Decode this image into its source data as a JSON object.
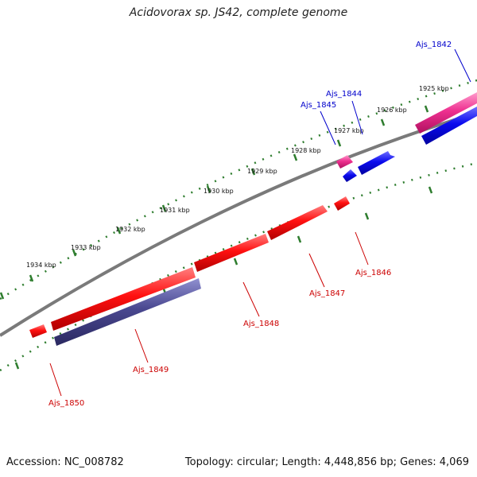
{
  "title": "Acidovorax sp. JS42, complete genome",
  "colors": {
    "backbone": "#7a7a7a",
    "ticks": "#2e7d2e",
    "forward_gene": "#0000ee",
    "reverse_gene": "#ee0000",
    "forward_label": "#0000cc",
    "reverse_label": "#cc0000",
    "pink_gene": "#e8308a",
    "navy_gene": "#4a4890"
  },
  "kbp_labels": [
    {
      "id": "1925",
      "text": "1925 kbp"
    },
    {
      "id": "1926",
      "text": "1926 kbp"
    },
    {
      "id": "1927",
      "text": "1927 kbp"
    },
    {
      "id": "1928",
      "text": "1928 kbp"
    },
    {
      "id": "1929",
      "text": "1929 kbp"
    },
    {
      "id": "1930",
      "text": "1930 kbp"
    },
    {
      "id": "1931",
      "text": "1931 kbp"
    },
    {
      "id": "1932",
      "text": "1932 kbp"
    },
    {
      "id": "1933",
      "text": "1933 kbp"
    },
    {
      "id": "1934",
      "text": "1934 kbp"
    }
  ],
  "genes": [
    {
      "id": "Ajs_1842",
      "label": "Ajs_1842",
      "strand": "forward"
    },
    {
      "id": "Ajs_1844",
      "label": "Ajs_1844",
      "strand": "forward"
    },
    {
      "id": "Ajs_1845",
      "label": "Ajs_1845",
      "strand": "forward"
    },
    {
      "id": "Ajs_1846",
      "label": "Ajs_1846",
      "strand": "reverse"
    },
    {
      "id": "Ajs_1847",
      "label": "Ajs_1847",
      "strand": "reverse"
    },
    {
      "id": "Ajs_1848",
      "label": "Ajs_1848",
      "strand": "reverse"
    },
    {
      "id": "Ajs_1849",
      "label": "Ajs_1849",
      "strand": "reverse"
    },
    {
      "id": "Ajs_1850",
      "label": "Ajs_1850",
      "strand": "reverse"
    }
  ],
  "footer": {
    "accession": "Accession: NC_008782",
    "topology": "Topology: circular; Length: 4,448,856 bp; Genes: 4,069"
  }
}
